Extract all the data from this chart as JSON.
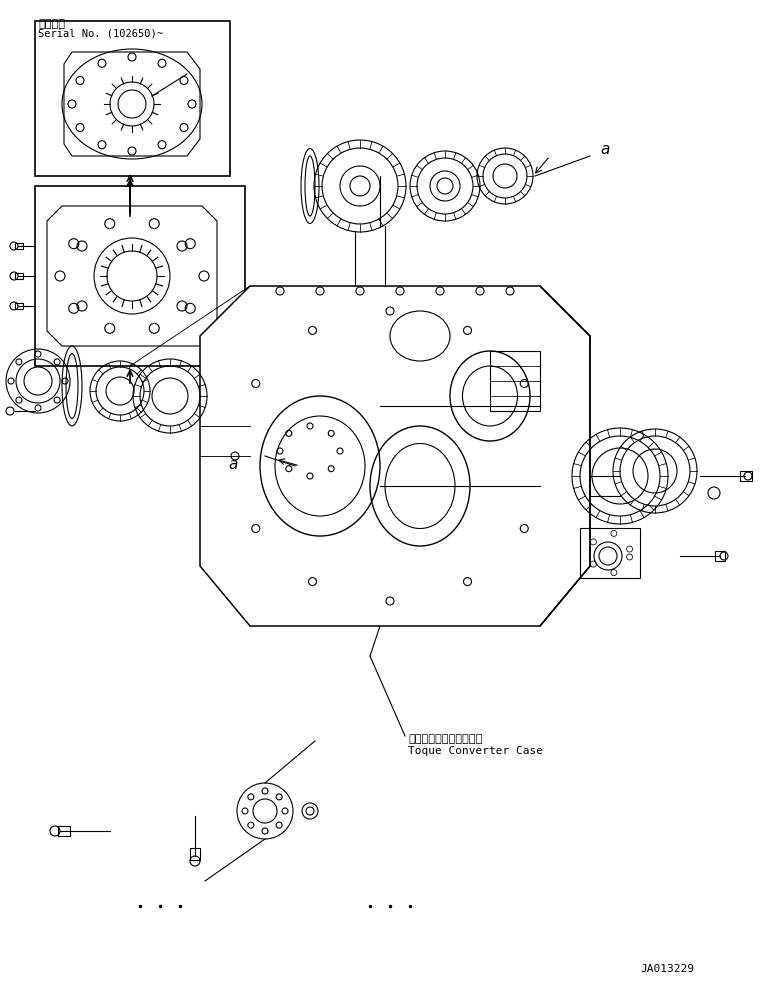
{
  "title_jp": "適用号機",
  "serial_text": "Serial No. (102650)~",
  "label_a": "a",
  "label_torque_jp": "トルクコンバータケース",
  "label_torque_en": "Toque Converter Case",
  "diagram_id": "JA013229",
  "bg_color": "#ffffff",
  "line_color": "#000000",
  "line_width": 0.8,
  "fig_width": 7.61,
  "fig_height": 9.87
}
